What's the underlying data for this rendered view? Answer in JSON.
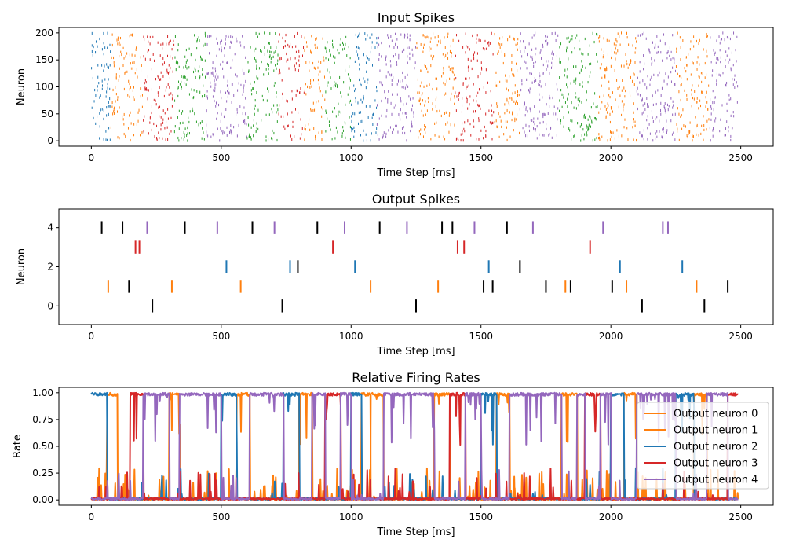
{
  "chart_data": [
    {
      "type": "scatter",
      "subtype": "raster",
      "title": "Input Spikes",
      "xlabel": "Time Step [ms]",
      "ylabel": "Neuron",
      "xlim": [
        -125,
        2625
      ],
      "ylim": [
        -10,
        210
      ],
      "xticks": [
        0,
        500,
        1000,
        1500,
        2000,
        2500
      ],
      "yticks": [
        0,
        50,
        100,
        150,
        200
      ],
      "colors": [
        "#1f77b4",
        "#ff7f0e",
        "#2ca02c",
        "#d62728",
        "#9467bd"
      ],
      "segments": [
        {
          "x": [
            0,
            75
          ],
          "color": "#1f77b4"
        },
        {
          "x": [
            75,
            200
          ],
          "color": "#ff7f0e"
        },
        {
          "x": [
            200,
            320
          ],
          "color": "#d62728"
        },
        {
          "x": [
            320,
            440
          ],
          "color": "#2ca02c"
        },
        {
          "x": [
            440,
            600
          ],
          "color": "#9467bd"
        },
        {
          "x": [
            600,
            720
          ],
          "color": "#2ca02c"
        },
        {
          "x": [
            720,
            820
          ],
          "color": "#d62728"
        },
        {
          "x": [
            820,
            900
          ],
          "color": "#ff7f0e"
        },
        {
          "x": [
            900,
            1000
          ],
          "color": "#2ca02c"
        },
        {
          "x": [
            1000,
            1100
          ],
          "color": "#1f77b4"
        },
        {
          "x": [
            1100,
            1250
          ],
          "color": "#9467bd"
        },
        {
          "x": [
            1250,
            1400
          ],
          "color": "#ff7f0e"
        },
        {
          "x": [
            1400,
            1550
          ],
          "color": "#d62728"
        },
        {
          "x": [
            1550,
            1650
          ],
          "color": "#ff7f0e"
        },
        {
          "x": [
            1650,
            1800
          ],
          "color": "#9467bd"
        },
        {
          "x": [
            1800,
            1950
          ],
          "color": "#2ca02c"
        },
        {
          "x": [
            1950,
            2100
          ],
          "color": "#ff7f0e"
        },
        {
          "x": [
            2100,
            2250
          ],
          "color": "#9467bd"
        },
        {
          "x": [
            2250,
            2380
          ],
          "color": "#ff7f0e"
        },
        {
          "x": [
            2380,
            2490
          ],
          "color": "#9467bd"
        }
      ]
    },
    {
      "type": "scatter",
      "subtype": "event-raster",
      "title": "Output Spikes",
      "xlabel": "Time Step [ms]",
      "ylabel": "Neuron",
      "xlim": [
        -125,
        2625
      ],
      "ylim": [
        -0.95,
        4.95
      ],
      "xticks": [
        0,
        500,
        1000,
        1500,
        2000,
        2500
      ],
      "yticks": [
        0,
        2,
        4
      ],
      "events": [
        {
          "neuron": 4,
          "times": [
            40,
            120,
            360,
            620,
            870,
            1110,
            1350,
            1390,
            1600
          ],
          "color": "#000000"
        },
        {
          "neuron": 4,
          "times": [
            215,
            485,
            705,
            975,
            1215,
            1475,
            1700,
            1970,
            2200,
            2220
          ],
          "color": "#9467bd"
        },
        {
          "neuron": 3,
          "times": [
            170,
            185,
            930,
            1410,
            1435,
            1920
          ],
          "color": "#d62728"
        },
        {
          "neuron": 2,
          "times": [
            520,
            765,
            1015,
            1530,
            2035,
            2275
          ],
          "color": "#1f77b4"
        },
        {
          "neuron": 2,
          "times": [
            795,
            1650
          ],
          "color": "#000000"
        },
        {
          "neuron": 1,
          "times": [
            65,
            310,
            575,
            1075,
            1335,
            1825,
            2060,
            2330
          ],
          "color": "#ff7f0e"
        },
        {
          "neuron": 1,
          "times": [
            145,
            1510,
            1545,
            1750,
            1845,
            2005,
            2450
          ],
          "color": "#000000"
        },
        {
          "neuron": 0,
          "times": [
            235,
            735,
            1250,
            2120,
            2360
          ],
          "color": "#000000"
        }
      ]
    },
    {
      "type": "line",
      "title": "Relative Firing Rates",
      "xlabel": "Time Step [ms]",
      "ylabel": "Rate",
      "xlim": [
        -125,
        2625
      ],
      "ylim": [
        -0.05,
        1.05
      ],
      "xticks": [
        0,
        500,
        1000,
        1500,
        2000,
        2500
      ],
      "yticks": [
        0,
        0.25,
        0.5,
        0.75,
        1.0
      ],
      "ytick_labels": [
        "0.00",
        "0.25",
        "0.50",
        "0.75",
        "1.00"
      ],
      "legend_position": "right",
      "series": [
        {
          "name": "Output neuron 0",
          "color": "#ff7f0e",
          "dominant": [
            [
              1075,
              1125
            ]
          ]
        },
        {
          "name": "Output neuron 1",
          "color": "#ff7f0e",
          "dominant": [
            [
              60,
              100
            ],
            [
              300,
              340
            ],
            [
              560,
              610
            ],
            [
              800,
              850
            ],
            [
              1040,
              1075
            ],
            [
              1320,
              1380
            ],
            [
              1560,
              1610
            ],
            [
              1810,
              1870
            ],
            [
              2050,
              2100
            ],
            [
              2320,
              2370
            ]
          ]
        },
        {
          "name": "Output neuron 2",
          "color": "#1f77b4",
          "dominant": [
            [
              0,
              60
            ],
            [
              500,
              560
            ],
            [
              740,
              800
            ],
            [
              1000,
              1040
            ],
            [
              1500,
              1560
            ],
            [
              2000,
              2050
            ],
            [
              2250,
              2320
            ]
          ]
        },
        {
          "name": "Output neuron 3",
          "color": "#d62728",
          "dominant": [
            [
              150,
              200
            ],
            [
              900,
              960
            ],
            [
              1380,
              1440
            ],
            [
              1900,
              1960
            ],
            [
              2450,
              2490
            ]
          ]
        },
        {
          "name": "Output neuron 4",
          "color": "#9467bd",
          "dominant": [
            [
              200,
              300
            ],
            [
              340,
              500
            ],
            [
              610,
              740
            ],
            [
              850,
              900
            ],
            [
              960,
              1000
            ],
            [
              1125,
              1320
            ],
            [
              1440,
              1500
            ],
            [
              1610,
              1810
            ],
            [
              1870,
              1900
            ],
            [
              1960,
              2000
            ],
            [
              2100,
              2250
            ],
            [
              2370,
              2450
            ]
          ]
        }
      ]
    }
  ]
}
